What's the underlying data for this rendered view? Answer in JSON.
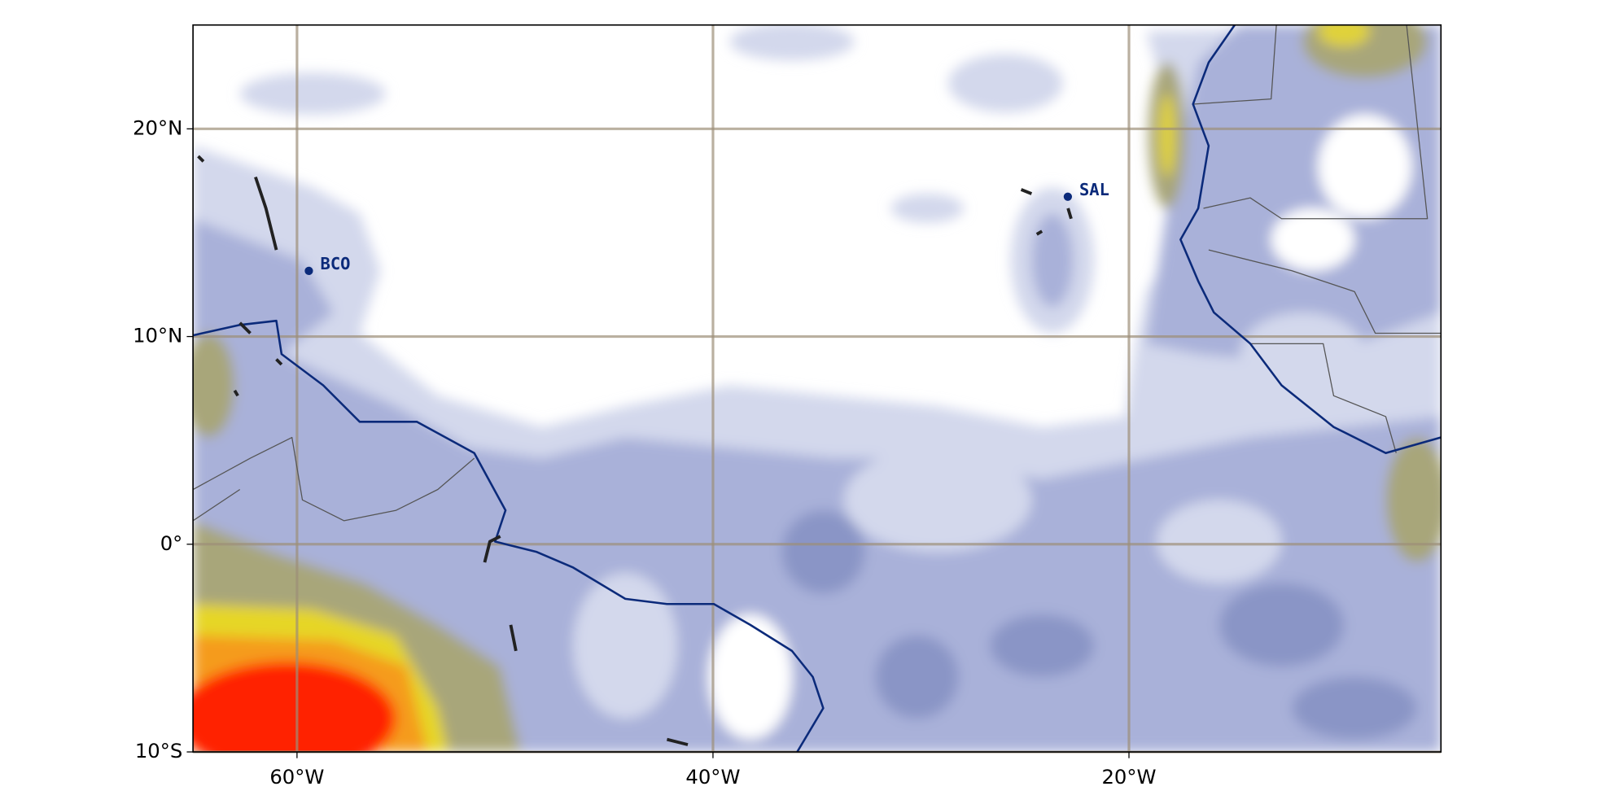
{
  "map": {
    "xlim": [
      -65,
      -5
    ],
    "ylim": [
      -10,
      25
    ],
    "xticks": [
      {
        "value": -60,
        "label": "60°W"
      },
      {
        "value": -40,
        "label": "40°W"
      },
      {
        "value": -20,
        "label": "20°W"
      }
    ],
    "yticks": [
      {
        "value": 20,
        "label": "20°N"
      },
      {
        "value": 10,
        "label": "10°N"
      },
      {
        "value": 0,
        "label": "0°"
      },
      {
        "value": -10,
        "label": "10°S"
      }
    ],
    "stations": [
      {
        "name": "BCO",
        "lon": -59.43,
        "lat": 13.16
      },
      {
        "name": "SAL",
        "lon": -22.94,
        "lat": 16.73
      }
    ]
  }
}
